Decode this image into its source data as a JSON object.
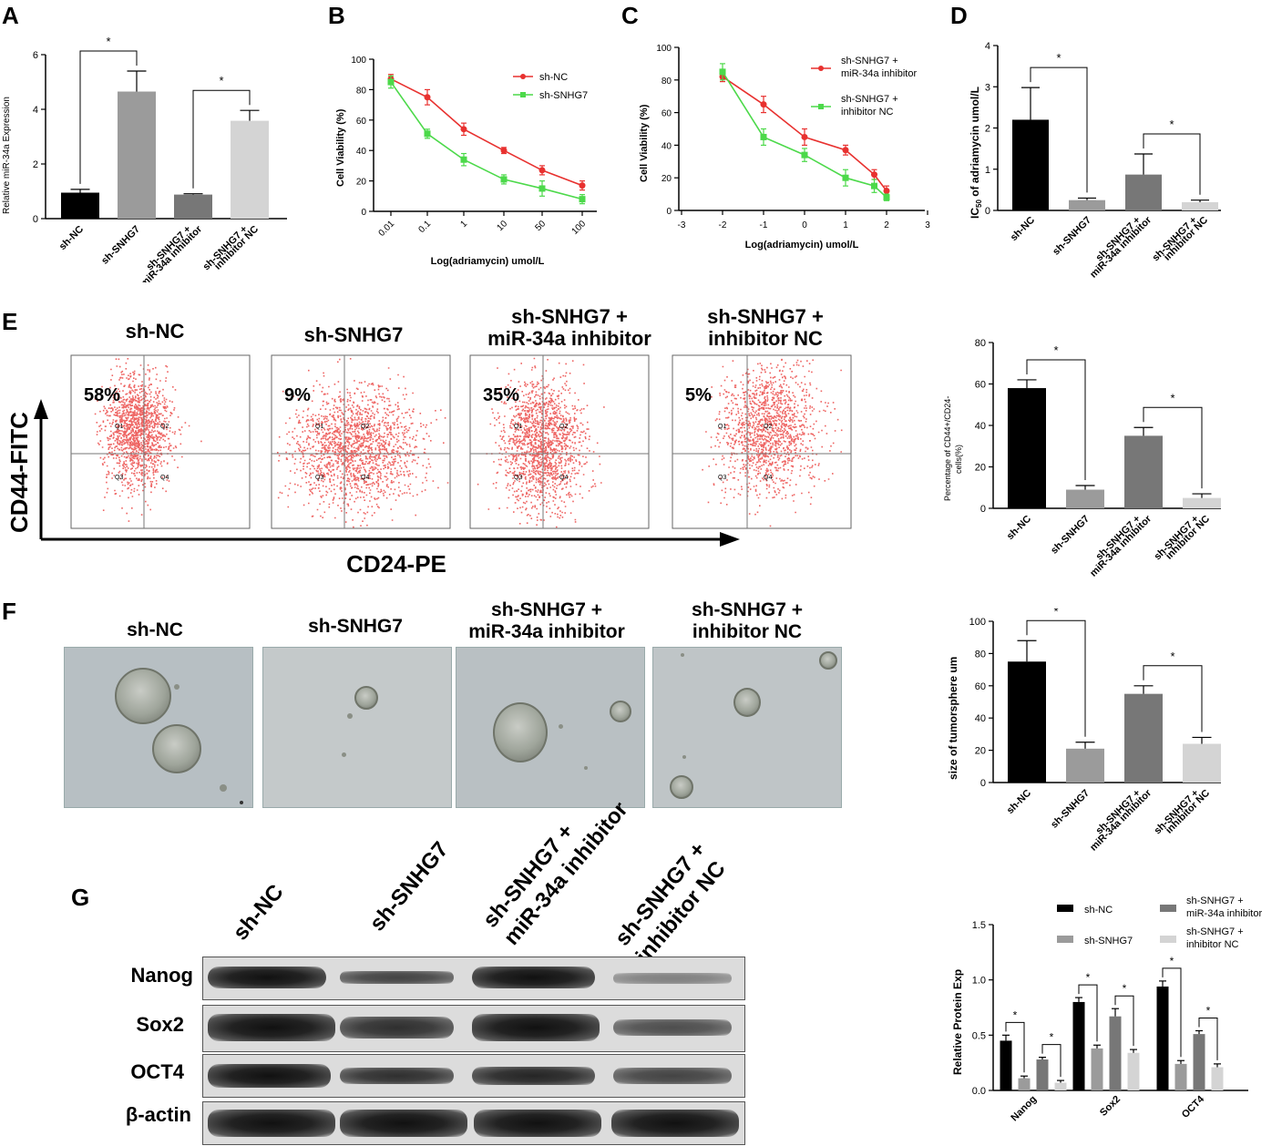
{
  "panels": {
    "A": {
      "letter": "A",
      "ylabel": "Relative miR-34a Expression",
      "yticks": [
        "0",
        "2",
        "4",
        "6"
      ],
      "categories": [
        "sh-NC",
        "sh-SNHG7",
        "sh-SNHG7 +",
        "miR-34a inhibitor",
        "sh-SNHG7 +",
        "inhibitor NC"
      ],
      "star": "*"
    },
    "B": {
      "letter": "B",
      "ylabel": "Cell Viability (%)",
      "xlabel": "Log(adriamycin) umol/L",
      "xticks": [
        "0.01",
        "0.1",
        "1",
        "10",
        "50",
        "100"
      ],
      "yticks": [
        "0",
        "20",
        "40",
        "60",
        "80",
        "100"
      ],
      "legend": [
        "sh-NC",
        "sh-SNHG7"
      ]
    },
    "C": {
      "letter": "C",
      "ylabel": "Cell Viability (%)",
      "xlabel": "Log(adriamycin) umol/L",
      "xticks": [
        "-3",
        "-2",
        "-1",
        "0",
        "1",
        "2",
        "3"
      ],
      "yticks": [
        "0",
        "20",
        "40",
        "60",
        "80",
        "100"
      ],
      "legend1": "sh-SNHG7 +",
      "legend1b": "miR-34a inhibitor",
      "legend2": "sh-SNHG7 +",
      "legend2b": "inhibitor NC"
    },
    "D": {
      "letter": "D",
      "ylabel_pre": "IC",
      "ylabel_sub": "50",
      "ylabel_post": " of adriamycin  umol/L",
      "yticks": [
        "0",
        "1",
        "2",
        "3",
        "4"
      ]
    },
    "E": {
      "letter": "E",
      "titles": [
        [
          "sh-NC",
          ""
        ],
        [
          "sh-SNHG7",
          ""
        ],
        [
          "sh-SNHG7 +",
          "miR-34a inhibitor"
        ],
        [
          "sh-SNHG7 +",
          "inhibitor NC"
        ]
      ],
      "percents": [
        "58%",
        "9%",
        "35%",
        "5%"
      ],
      "yaxis": "CD44-FITC",
      "xaxis": "CD24-PE",
      "quadrants": [
        "Q1",
        "Q2",
        "Q3",
        "Q4"
      ],
      "bar_ylabel1": "Percentage of CD44+/CD24-",
      "bar_ylabel2": "cells(%)",
      "bar_yticks": [
        "0",
        "20",
        "40",
        "60",
        "80"
      ]
    },
    "F": {
      "letter": "F",
      "titles": [
        [
          "sh-NC",
          ""
        ],
        [
          "sh-SNHG7",
          ""
        ],
        [
          "sh-SNHG7 +",
          "miR-34a inhibitor"
        ],
        [
          "sh-SNHG7 +",
          "inhibitor NC"
        ]
      ],
      "bar_ylabel": "size of tumorsphere um",
      "bar_yticks": [
        "0",
        "20",
        "40",
        "60",
        "80",
        "100"
      ]
    },
    "G": {
      "letter": "G",
      "lanes": [
        [
          "sh-NC",
          ""
        ],
        [
          "sh-SNHG7",
          ""
        ],
        [
          "sh-SNHG7 +",
          "miR-34a inhibitor"
        ],
        [
          "sh-SNHG7 +",
          "inhibitor NC"
        ]
      ],
      "rows": [
        "Nanog",
        "Sox2",
        "OCT4",
        "β-actin"
      ],
      "bar_ylabel": "Relative Protein Exp",
      "bar_yticks": [
        "0.0",
        "0.5",
        "1.0",
        "1.5"
      ],
      "groups": [
        "Nanog",
        "Sox2",
        "OCT4"
      ],
      "legend": [
        "sh-NC",
        "sh-SNHG7",
        "sh-SNHG7 +",
        "miR-34a inhibitor",
        "sh-SNHG7 +",
        "inhibitor NC"
      ]
    }
  },
  "colors": {
    "black": "#000000",
    "gray1": "#9b9b9b",
    "gray2": "#777777",
    "gray3": "#d4d4d4",
    "red": "#e8312f",
    "green": "#4cd94a"
  },
  "chart_data": [
    {
      "type": "bar",
      "panel": "A",
      "categories": [
        "sh-NC",
        "sh-SNHG7",
        "sh-SNHG7 + miR-34a inhibitor",
        "sh-SNHG7 + inhibitor NC"
      ],
      "values": [
        0.95,
        4.65,
        0.88,
        3.58
      ],
      "errors": [
        0.12,
        0.75,
        0.03,
        0.38
      ],
      "ylabel": "Relative miR-34a Expression",
      "ylim": [
        0,
        6
      ]
    },
    {
      "type": "line",
      "panel": "B",
      "x": [
        "0.01",
        "0.1",
        "1",
        "10",
        "50",
        "100"
      ],
      "xlabel": "Log(adriamycin) umol/L",
      "ylabel": "Cell Viability (%)",
      "ylim": [
        0,
        100
      ],
      "series": [
        {
          "name": "sh-NC",
          "values": [
            87,
            75,
            54,
            40,
            27,
            17
          ],
          "errors": [
            3,
            5,
            4,
            2,
            3,
            3
          ]
        },
        {
          "name": "sh-SNHG7",
          "values": [
            85,
            51,
            34,
            21,
            15,
            8
          ],
          "errors": [
            4,
            3,
            4,
            3,
            5,
            3
          ]
        }
      ]
    },
    {
      "type": "line",
      "panel": "C",
      "x": [
        -2,
        -1,
        0,
        1,
        1.7,
        2
      ],
      "xlabel": "Log(adriamycin) umol/L",
      "ylabel": "Cell Viability (%)",
      "ylim": [
        0,
        100
      ],
      "xlim": [
        -3,
        3
      ],
      "series": [
        {
          "name": "sh-SNHG7 + miR-34a inhibitor",
          "values": [
            82,
            65,
            45,
            37,
            22,
            12
          ],
          "errors": [
            3,
            5,
            5,
            3,
            3,
            3
          ]
        },
        {
          "name": "sh-SNHG7 + inhibitor NC",
          "values": [
            85,
            45,
            34,
            20,
            15,
            8
          ],
          "errors": [
            5,
            5,
            4,
            5,
            4,
            2
          ]
        }
      ]
    },
    {
      "type": "bar",
      "panel": "D",
      "categories": [
        "sh-NC",
        "sh-SNHG7",
        "sh-SNHG7 + miR-34a inhibitor",
        "sh-SNHG7 + inhibitor NC"
      ],
      "values": [
        2.2,
        0.25,
        0.87,
        0.2
      ],
      "errors": [
        0.78,
        0.05,
        0.5,
        0.05
      ],
      "ylabel": "IC50 of adriamycin umol/L",
      "ylim": [
        0,
        4
      ]
    },
    {
      "type": "bar",
      "panel": "E",
      "categories": [
        "sh-NC",
        "sh-SNHG7",
        "sh-SNHG7 + miR-34a inhibitor",
        "sh-SNHG7 + inhibitor NC"
      ],
      "values": [
        58,
        9,
        35,
        5
      ],
      "errors": [
        4,
        2,
        4,
        2
      ],
      "ylabel": "Percentage of CD44+/CD24- cells(%)",
      "ylim": [
        0,
        80
      ]
    },
    {
      "type": "bar",
      "panel": "F",
      "categories": [
        "sh-NC",
        "sh-SNHG7",
        "sh-SNHG7 + miR-34a inhibitor",
        "sh-SNHG7 + inhibitor NC"
      ],
      "values": [
        75,
        21,
        55,
        24
      ],
      "errors": [
        13,
        4,
        5,
        4
      ],
      "ylabel": "size of tumorsphere um",
      "ylim": [
        0,
        100
      ]
    },
    {
      "type": "bar",
      "panel": "G",
      "categories": [
        "Nanog",
        "Sox2",
        "OCT4"
      ],
      "ylabel": "Relative Protein Exp",
      "ylim": [
        0,
        1.5
      ],
      "series": [
        {
          "name": "sh-NC",
          "values": [
            0.45,
            0.8,
            0.94
          ],
          "errors": [
            0.05,
            0.04,
            0.05
          ]
        },
        {
          "name": "sh-SNHG7",
          "values": [
            0.11,
            0.38,
            0.24
          ],
          "errors": [
            0.02,
            0.03,
            0.03
          ]
        },
        {
          "name": "sh-SNHG7 + miR-34a inhibitor",
          "values": [
            0.28,
            0.67,
            0.51
          ],
          "errors": [
            0.02,
            0.07,
            0.03
          ]
        },
        {
          "name": "sh-SNHG7 + inhibitor NC",
          "values": [
            0.07,
            0.34,
            0.21
          ],
          "errors": [
            0.02,
            0.03,
            0.03
          ]
        }
      ]
    }
  ]
}
